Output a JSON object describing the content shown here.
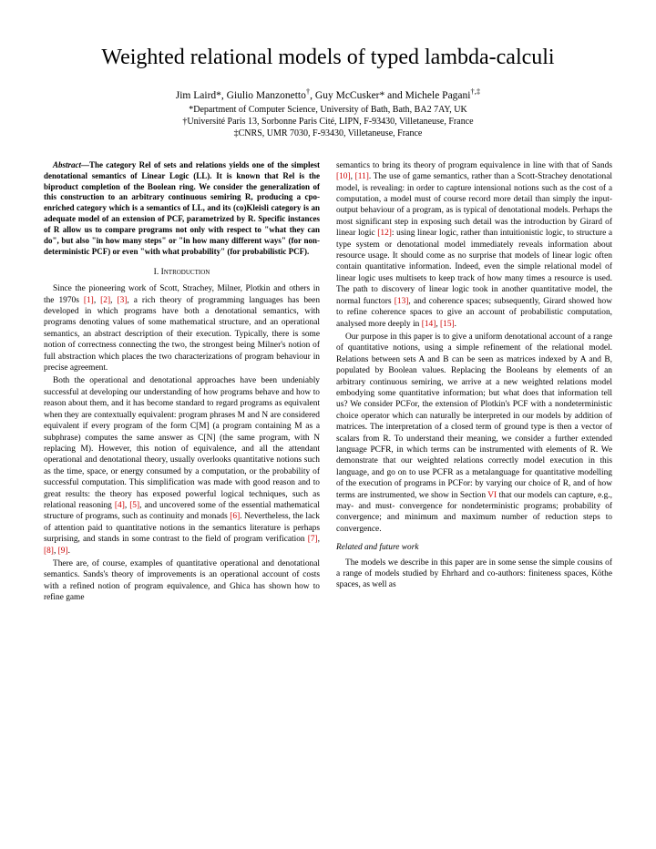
{
  "title": "Weighted relational models of typed lambda-calculi",
  "authors_html": "Jim Laird*, Giulio Manzonetto†, Guy McCusker* and Michele Pagani†,‡",
  "affil1": "*Department of Computer Science, University of Bath, Bath, BA2 7AY, UK",
  "affil2": "†Université Paris 13, Sorbonne Paris Cité, LIPN, F-93430, Villetaneuse, France",
  "affil3": "‡CNRS, UMR 7030, F-93430, Villetaneuse, France",
  "abstract_label": "Abstract—",
  "abstract": "The category Rel of sets and relations yields one of the simplest denotational semantics of Linear Logic (LL). It is known that Rel is the biproduct completion of the Boolean ring. We consider the generalization of this construction to an arbitrary continuous semiring R, producing a cpo-enriched category which is a semantics of LL, and its (co)Kleisli category is an adequate model of an extension of PCF, parametrized by R. Specific instances of R allow us to compare programs not only with respect to \"what they can do\", but also \"in how many steps\" or \"in how many different ways\" (for non-deterministic PCF) or even \"with what probability\" (for probabilistic PCF).",
  "section1": "I.  Introduction",
  "col1_p1a": "Since the pioneering work of Scott, Strachey, Milner, Plotkin and others in the 1970s ",
  "r1": "[1]",
  "col1_p1b": ", ",
  "r2": "[2]",
  "col1_p1c": ", ",
  "r3": "[3]",
  "col1_p1d": ", a rich theory of programming languages has been developed in which programs have both a denotational semantics, with programs denoting values of some mathematical structure, and an operational semantics, an abstract description of their execution. Typically, there is some notion of correctness connecting the two, the strongest being Milner's notion of full abstraction which places the two characterizations of program behaviour in precise agreement.",
  "col1_p2a": "Both the operational and denotational approaches have been undeniably successful at developing our understanding of how programs behave and how to reason about them, and it has become standard to regard programs as equivalent when they are contextually equivalent: program phrases M and N are considered equivalent if every program of the form C[M] (a program containing M as a subphrase) computes the same answer as C[N] (the same program, with N replacing M). However, this notion of equivalence, and all the attendant operational and denotational theory, usually overlooks quantitative notions such as the time, space, or energy consumed by a computation, or the probability of successful computation. This simplification was made with good reason and to great results: the theory has exposed powerful logical techniques, such as relational reasoning ",
  "r4": "[4]",
  "col1_p2b": ", ",
  "r5": "[5]",
  "col1_p2c": ", and uncovered some of the essential mathematical structure of programs, such as continuity and monads ",
  "r6": "[6]",
  "col1_p2d": ". Nevertheless, the lack of attention paid to quantitative notions in the semantics literature is perhaps surprising, and stands in some contrast to the field of program verification ",
  "r7": "[7]",
  "col1_p2e": ", ",
  "r8": "[8]",
  "col1_p2f": ", ",
  "r9": "[9]",
  "col1_p2g": ".",
  "col1_p3": "There are, of course, examples of quantitative operational and denotational semantics. Sands's theory of improvements is an operational account of costs with a refined notion of program equivalence, and Ghica has shown how to refine game",
  "col2_p1a": "semantics to bring its theory of program equivalence in line with that of Sands ",
  "r10": "[10]",
  "col2_p1b": ", ",
  "r11": "[11]",
  "col2_p1c": ". The use of game semantics, rather than a Scott-Strachey denotational model, is revealing: in order to capture intensional notions such as the cost of a computation, a model must of course record more detail than simply the input-output behaviour of a program, as is typical of denotational models. Perhaps the most significant step in exposing such detail was the introduction by Girard of linear logic ",
  "r12": "[12]",
  "col2_p1d": ": using linear logic, rather than intuitionistic logic, to structure a type system or denotational model immediately reveals information about resource usage. It should come as no surprise that models of linear logic often contain quantitative information. Indeed, even the simple relational model of linear logic uses multisets to keep track of how many times a resource is used. The path to discovery of linear logic took in another quantitative model, the normal functors ",
  "r13": "[13]",
  "col2_p1e": ", and coherence spaces; subsequently, Girard showed how to refine coherence spaces to give an account of probabilistic computation, analysed more deeply in ",
  "r14": "[14]",
  "col2_p1f": ", ",
  "r15": "[15]",
  "col2_p1g": ".",
  "col2_p2a": "Our purpose in this paper is to give a uniform denotational account of a range of quantitative notions, using a simple refinement of the relational model. Relations between sets A and B can be seen as matrices indexed by A and B, populated by Boolean values. Replacing the Booleans by elements of an arbitrary continuous semiring, we arrive at a new weighted relations model embodying some quantitative information; but what does that information tell us? We consider PCFor, the extension of Plotkin's PCF with a nondeterministic choice operator which can naturally be interpreted in our models by addition of matrices. The interpretation of a closed term of ground type is then a vector of scalars from R. To understand their meaning, we consider a further extended language PCFR, in which terms can be instrumented with elements of R. We demonstrate that our weighted relations correctly model execution in this language, and go on to use PCFR as a metalanguage for quantitative modelling of the execution of programs in PCFor: by varying our choice of R, and of how terms are instrumented, we show in Section ",
  "rVI": "VI",
  "col2_p2b": " that our models can capture, e.g., may- and must- convergence for nondeterministic programs; probability of convergence; and minimum and maximum number of reduction steps to convergence.",
  "subheading1": "Related and future work",
  "col2_p3": "The models we describe in this paper are in some sense the simple cousins of a range of models studied by Ehrhard and co-authors: finiteness spaces, Köthe spaces, as well as",
  "ref_color": "#cc0000",
  "body_fontsize": 9.4,
  "title_fontsize": 24
}
